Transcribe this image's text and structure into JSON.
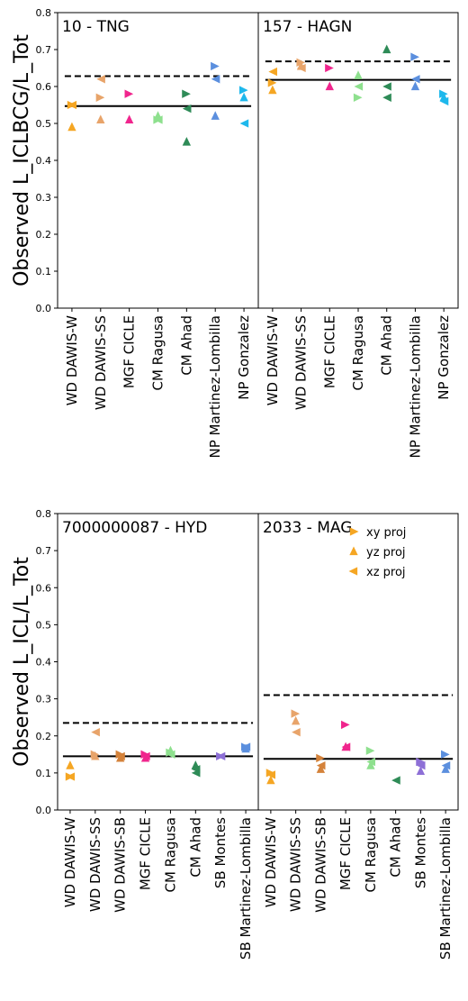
{
  "chart_data": [
    {
      "type": "scatter",
      "ylabel": "Observed L_ICLBCG/L_Tot",
      "ylim": [
        0,
        0.8
      ],
      "yticks": [
        "0.0",
        "0.1",
        "0.2",
        "0.3",
        "0.4",
        "0.5",
        "0.6",
        "0.7",
        "0.8"
      ],
      "panels": [
        {
          "title": "10 - TNG",
          "categories": [
            "WD DAWIS-W",
            "WD DAWIS-SS",
            "MGF CICLE",
            "CM Ragusa",
            "CM Ahad",
            "NP Martinez-Lombilla",
            "NP Gonzalez"
          ],
          "solid_line": 0.547,
          "dashed_line": 0.628,
          "points": [
            {
              "cat": 0,
              "proj": "xy",
              "y": 0.55,
              "color": "#f5a623"
            },
            {
              "cat": 0,
              "proj": "yz",
              "y": 0.49,
              "color": "#f5a623"
            },
            {
              "cat": 0,
              "proj": "xz",
              "y": 0.55,
              "color": "#f5a623"
            },
            {
              "cat": 1,
              "proj": "xy",
              "y": 0.57,
              "color": "#e8a46a"
            },
            {
              "cat": 1,
              "proj": "yz",
              "y": 0.51,
              "color": "#e8a46a"
            },
            {
              "cat": 1,
              "proj": "xz",
              "y": 0.62,
              "color": "#e8a46a"
            },
            {
              "cat": 2,
              "proj": "xy",
              "y": 0.58,
              "color": "#f0258d"
            },
            {
              "cat": 2,
              "proj": "yz",
              "y": 0.51,
              "color": "#f0258d"
            },
            {
              "cat": 3,
              "proj": "xy",
              "y": 0.51,
              "color": "#8ee08e"
            },
            {
              "cat": 3,
              "proj": "yz",
              "y": 0.52,
              "color": "#8ee08e"
            },
            {
              "cat": 3,
              "proj": "xz",
              "y": 0.51,
              "color": "#8ee08e"
            },
            {
              "cat": 4,
              "proj": "xy",
              "y": 0.58,
              "color": "#2e8b57"
            },
            {
              "cat": 4,
              "proj": "yz",
              "y": 0.45,
              "color": "#2e8b57"
            },
            {
              "cat": 4,
              "proj": "xz",
              "y": 0.54,
              "color": "#2e8b57"
            },
            {
              "cat": 5,
              "proj": "xy",
              "y": 0.655,
              "color": "#5b8fde"
            },
            {
              "cat": 5,
              "proj": "yz",
              "y": 0.52,
              "color": "#5b8fde"
            },
            {
              "cat": 5,
              "proj": "xz",
              "y": 0.62,
              "color": "#5b8fde"
            },
            {
              "cat": 6,
              "proj": "xy",
              "y": 0.59,
              "color": "#1eb8ec"
            },
            {
              "cat": 6,
              "proj": "yz",
              "y": 0.57,
              "color": "#1eb8ec"
            },
            {
              "cat": 6,
              "proj": "xz",
              "y": 0.5,
              "color": "#1eb8ec"
            }
          ]
        },
        {
          "title": "157 - HAGN",
          "categories": [
            "WD DAWIS-W",
            "WD DAWIS-SS",
            "MGF CICLE",
            "CM Ragusa",
            "CM Ahad",
            "NP Martinez-Lombilla",
            "NP Gonzalez"
          ],
          "solid_line": 0.618,
          "dashed_line": 0.668,
          "points": [
            {
              "cat": 0,
              "proj": "xy",
              "y": 0.61,
              "color": "#f5a623"
            },
            {
              "cat": 0,
              "proj": "yz",
              "y": 0.59,
              "color": "#f5a623"
            },
            {
              "cat": 0,
              "proj": "xz",
              "y": 0.64,
              "color": "#f5a623"
            },
            {
              "cat": 1,
              "proj": "xy",
              "y": 0.665,
              "color": "#e8a46a"
            },
            {
              "cat": 1,
              "proj": "yz",
              "y": 0.655,
              "color": "#e8a46a"
            },
            {
              "cat": 1,
              "proj": "xz",
              "y": 0.65,
              "color": "#e8a46a"
            },
            {
              "cat": 2,
              "proj": "xy",
              "y": 0.65,
              "color": "#f0258d"
            },
            {
              "cat": 2,
              "proj": "yz",
              "y": 0.6,
              "color": "#f0258d"
            },
            {
              "cat": 3,
              "proj": "xy",
              "y": 0.57,
              "color": "#8ee08e"
            },
            {
              "cat": 3,
              "proj": "yz",
              "y": 0.63,
              "color": "#8ee08e"
            },
            {
              "cat": 3,
              "proj": "xz",
              "y": 0.6,
              "color": "#8ee08e"
            },
            {
              "cat": 4,
              "proj": "yz",
              "y": 0.7,
              "color": "#2e8b57"
            },
            {
              "cat": 4,
              "proj": "xz",
              "y": 0.6,
              "color": "#2e8b57"
            },
            {
              "cat": 4,
              "proj": "xz",
              "y": 0.57,
              "color": "#2e8b57"
            },
            {
              "cat": 5,
              "proj": "xy",
              "y": 0.68,
              "color": "#5b8fde"
            },
            {
              "cat": 5,
              "proj": "yz",
              "y": 0.6,
              "color": "#5b8fde"
            },
            {
              "cat": 5,
              "proj": "xz",
              "y": 0.62,
              "color": "#5b8fde"
            },
            {
              "cat": 6,
              "proj": "xy",
              "y": 0.58,
              "color": "#1eb8ec"
            },
            {
              "cat": 6,
              "proj": "yz",
              "y": 0.57,
              "color": "#1eb8ec"
            },
            {
              "cat": 6,
              "proj": "xz",
              "y": 0.56,
              "color": "#1eb8ec"
            }
          ]
        }
      ]
    },
    {
      "type": "scatter",
      "ylabel": "Observed L_ICL/L_Tot",
      "ylim": [
        0,
        0.8
      ],
      "yticks": [
        "0.0",
        "0.1",
        "0.2",
        "0.3",
        "0.4",
        "0.5",
        "0.6",
        "0.7",
        "0.8"
      ],
      "legend": {
        "placement": "top-right",
        "entries": [
          "xy proj",
          "yz proj",
          "xz proj"
        ],
        "color": "#f5a623"
      },
      "panels": [
        {
          "title": "7000000087 - HYD",
          "categories": [
            "WD DAWIS-W",
            "WD DAWIS-SS",
            "WD DAWIS-SB",
            "MGF CICLE",
            "CM Ragusa",
            "CM Ahad",
            "SB Montes",
            "SB Martinez-Lombilla"
          ],
          "solid_line": 0.145,
          "dashed_line": 0.235,
          "points": [
            {
              "cat": 0,
              "proj": "xy",
              "y": 0.09,
              "color": "#f5a623"
            },
            {
              "cat": 0,
              "proj": "yz",
              "y": 0.12,
              "color": "#f5a623"
            },
            {
              "cat": 0,
              "proj": "xz",
              "y": 0.09,
              "color": "#f5a623"
            },
            {
              "cat": 1,
              "proj": "xy",
              "y": 0.15,
              "color": "#e8a46a"
            },
            {
              "cat": 1,
              "proj": "yz",
              "y": 0.145,
              "color": "#e8a46a"
            },
            {
              "cat": 1,
              "proj": "xz",
              "y": 0.21,
              "color": "#e8a46a"
            },
            {
              "cat": 2,
              "proj": "xy",
              "y": 0.15,
              "color": "#d4823a"
            },
            {
              "cat": 2,
              "proj": "yz",
              "y": 0.14,
              "color": "#d4823a"
            },
            {
              "cat": 2,
              "proj": "xz",
              "y": 0.145,
              "color": "#d4823a"
            },
            {
              "cat": 3,
              "proj": "xy",
              "y": 0.15,
              "color": "#f0258d"
            },
            {
              "cat": 3,
              "proj": "yz",
              "y": 0.14,
              "color": "#f0258d"
            },
            {
              "cat": 3,
              "proj": "xz",
              "y": 0.145,
              "color": "#f0258d"
            },
            {
              "cat": 4,
              "proj": "xy",
              "y": 0.155,
              "color": "#8ee08e"
            },
            {
              "cat": 4,
              "proj": "yz",
              "y": 0.16,
              "color": "#8ee08e"
            },
            {
              "cat": 4,
              "proj": "xz",
              "y": 0.15,
              "color": "#8ee08e"
            },
            {
              "cat": 5,
              "proj": "yz",
              "y": 0.12,
              "color": "#2e8b57"
            },
            {
              "cat": 5,
              "proj": "xz",
              "y": 0.11,
              "color": "#2e8b57"
            },
            {
              "cat": 5,
              "proj": "xz",
              "y": 0.1,
              "color": "#2e8b57"
            },
            {
              "cat": 6,
              "proj": "xy",
              "y": 0.145,
              "color": "#8d6fd6"
            },
            {
              "cat": 6,
              "proj": "xz",
              "y": 0.145,
              "color": "#8d6fd6"
            },
            {
              "cat": 7,
              "proj": "xy",
              "y": 0.17,
              "color": "#5b8fde"
            },
            {
              "cat": 7,
              "proj": "yz",
              "y": 0.165,
              "color": "#5b8fde"
            },
            {
              "cat": 7,
              "proj": "xz",
              "y": 0.17,
              "color": "#5b8fde"
            }
          ]
        },
        {
          "title": "2033 - MAG",
          "categories": [
            "WD DAWIS-W",
            "WD DAWIS-SS",
            "WD DAWIS-SB",
            "MGF CICLE",
            "CM Ragusa",
            "CM Ahad",
            "SB Montes",
            "SB Martinez-Lombilla"
          ],
          "solid_line": 0.138,
          "dashed_line": 0.31,
          "points": [
            {
              "cat": 0,
              "proj": "xy",
              "y": 0.1,
              "color": "#f5a623"
            },
            {
              "cat": 0,
              "proj": "yz",
              "y": 0.08,
              "color": "#f5a623"
            },
            {
              "cat": 0,
              "proj": "xz",
              "y": 0.095,
              "color": "#f5a623"
            },
            {
              "cat": 1,
              "proj": "xy",
              "y": 0.26,
              "color": "#e8a46a"
            },
            {
              "cat": 1,
              "proj": "yz",
              "y": 0.24,
              "color": "#e8a46a"
            },
            {
              "cat": 1,
              "proj": "xz",
              "y": 0.21,
              "color": "#e8a46a"
            },
            {
              "cat": 2,
              "proj": "xy",
              "y": 0.14,
              "color": "#d4823a"
            },
            {
              "cat": 2,
              "proj": "yz",
              "y": 0.11,
              "color": "#d4823a"
            },
            {
              "cat": 2,
              "proj": "xz",
              "y": 0.12,
              "color": "#d4823a"
            },
            {
              "cat": 3,
              "proj": "xy",
              "y": 0.23,
              "color": "#f0258d"
            },
            {
              "cat": 3,
              "proj": "yz",
              "y": 0.17,
              "color": "#f0258d"
            },
            {
              "cat": 3,
              "proj": "xz",
              "y": 0.17,
              "color": "#f0258d"
            },
            {
              "cat": 4,
              "proj": "xy",
              "y": 0.16,
              "color": "#8ee08e"
            },
            {
              "cat": 4,
              "proj": "yz",
              "y": 0.12,
              "color": "#8ee08e"
            },
            {
              "cat": 4,
              "proj": "xz",
              "y": 0.13,
              "color": "#8ee08e"
            },
            {
              "cat": 5,
              "proj": "xz",
              "y": 0.08,
              "color": "#2e8b57"
            },
            {
              "cat": 6,
              "proj": "xy",
              "y": 0.13,
              "color": "#8d6fd6"
            },
            {
              "cat": 6,
              "proj": "yz",
              "y": 0.105,
              "color": "#8d6fd6"
            },
            {
              "cat": 6,
              "proj": "xz",
              "y": 0.12,
              "color": "#8d6fd6"
            },
            {
              "cat": 7,
              "proj": "xy",
              "y": 0.15,
              "color": "#5b8fde"
            },
            {
              "cat": 7,
              "proj": "yz",
              "y": 0.11,
              "color": "#5b8fde"
            },
            {
              "cat": 7,
              "proj": "xz",
              "y": 0.12,
              "color": "#5b8fde"
            }
          ]
        }
      ]
    }
  ]
}
